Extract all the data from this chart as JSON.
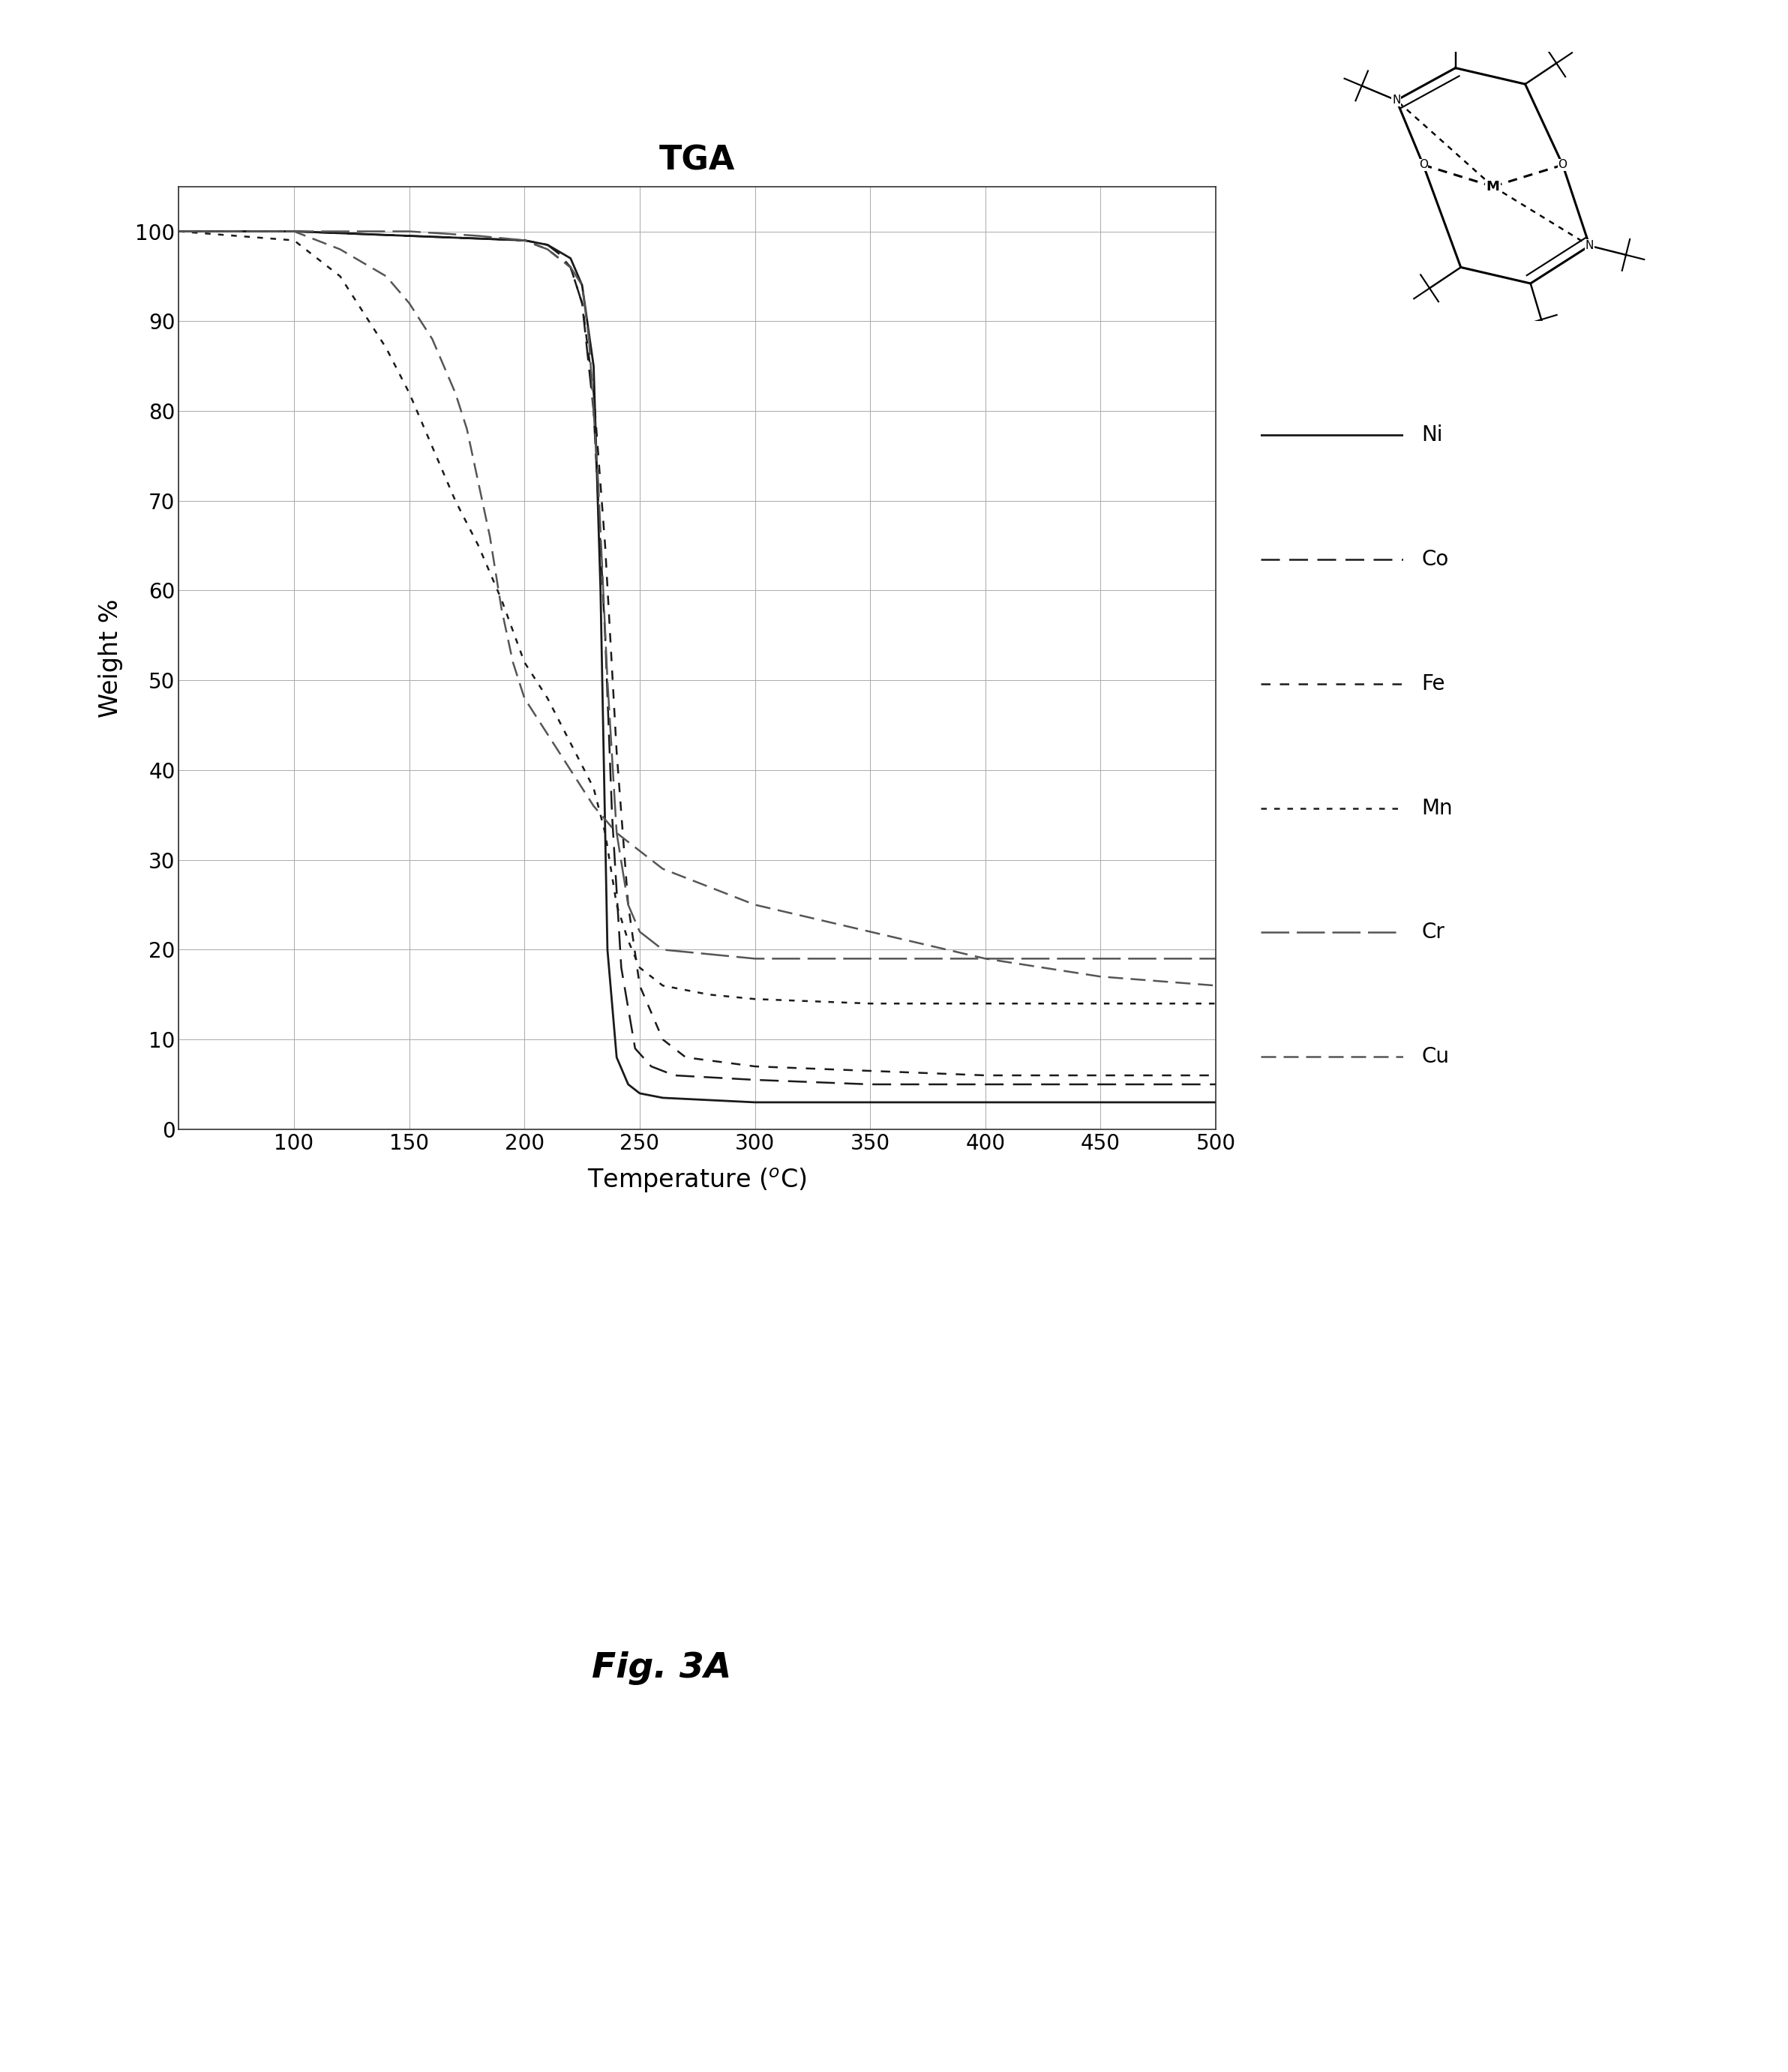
{
  "title": "TGA",
  "xlabel": "Temperature ($^{o}$C)",
  "ylabel": "Weight %",
  "xlim": [
    50,
    500
  ],
  "ylim": [
    0,
    105
  ],
  "xticks": [
    50,
    100,
    150,
    200,
    250,
    300,
    350,
    400,
    450,
    500
  ],
  "yticks": [
    0,
    10,
    20,
    30,
    40,
    50,
    60,
    70,
    80,
    90,
    100
  ],
  "background_color": "#ffffff",
  "series": [
    {
      "label": "Ni",
      "x": [
        50,
        100,
        150,
        200,
        210,
        220,
        225,
        230,
        233,
        236,
        240,
        245,
        250,
        260,
        300,
        400,
        500
      ],
      "y": [
        100,
        100,
        99.5,
        99,
        98.5,
        97,
        94,
        85,
        60,
        20,
        8,
        5,
        4,
        3.5,
        3,
        3,
        3
      ]
    },
    {
      "label": "Co",
      "x": [
        50,
        100,
        150,
        200,
        210,
        215,
        220,
        225,
        230,
        235,
        238,
        242,
        248,
        255,
        265,
        300,
        350,
        400,
        500
      ],
      "y": [
        100,
        100,
        99.5,
        99,
        98.5,
        97.5,
        96,
        92,
        80,
        55,
        35,
        18,
        9,
        7,
        6,
        5.5,
        5,
        5,
        5
      ]
    },
    {
      "label": "Fe",
      "x": [
        50,
        100,
        150,
        200,
        210,
        220,
        225,
        230,
        235,
        240,
        245,
        250,
        260,
        270,
        300,
        350,
        400,
        500
      ],
      "y": [
        100,
        100,
        99.5,
        99,
        98,
        96,
        92,
        82,
        65,
        42,
        25,
        16,
        10,
        8,
        7,
        6.5,
        6,
        6
      ]
    },
    {
      "label": "Mn",
      "x": [
        50,
        100,
        110,
        120,
        130,
        140,
        150,
        160,
        170,
        180,
        190,
        200,
        210,
        220,
        230,
        235,
        240,
        245,
        250,
        260,
        280,
        300,
        350,
        400,
        450,
        500
      ],
      "y": [
        100,
        99,
        97,
        95,
        91,
        87,
        82,
        76,
        70,
        65,
        59,
        52,
        48,
        43,
        38,
        33,
        25,
        21,
        18,
        16,
        15,
        14.5,
        14,
        14,
        14,
        14
      ]
    },
    {
      "label": "Cr",
      "x": [
        50,
        100,
        150,
        180,
        200,
        210,
        220,
        225,
        228,
        232,
        236,
        240,
        245,
        250,
        260,
        280,
        300,
        350,
        400,
        500
      ],
      "y": [
        100,
        100,
        100,
        99.5,
        99,
        98,
        96,
        94,
        88,
        72,
        50,
        33,
        25,
        22,
        20,
        19.5,
        19,
        19,
        19,
        19
      ]
    },
    {
      "label": "Cu",
      "x": [
        50,
        100,
        120,
        140,
        150,
        160,
        170,
        175,
        180,
        185,
        190,
        195,
        200,
        210,
        220,
        230,
        240,
        250,
        260,
        280,
        300,
        350,
        400,
        450,
        500
      ],
      "y": [
        100,
        100,
        98,
        95,
        92,
        88,
        82,
        78,
        72,
        66,
        58,
        52,
        48,
        44,
        40,
        36,
        33,
        31,
        29,
        27,
        25,
        22,
        19,
        17,
        16
      ]
    }
  ],
  "fig_label": "Fig. 3A",
  "legend_items": [
    "Ni",
    "Co",
    "Fe",
    "Mn",
    "Cr",
    "Cu"
  ]
}
